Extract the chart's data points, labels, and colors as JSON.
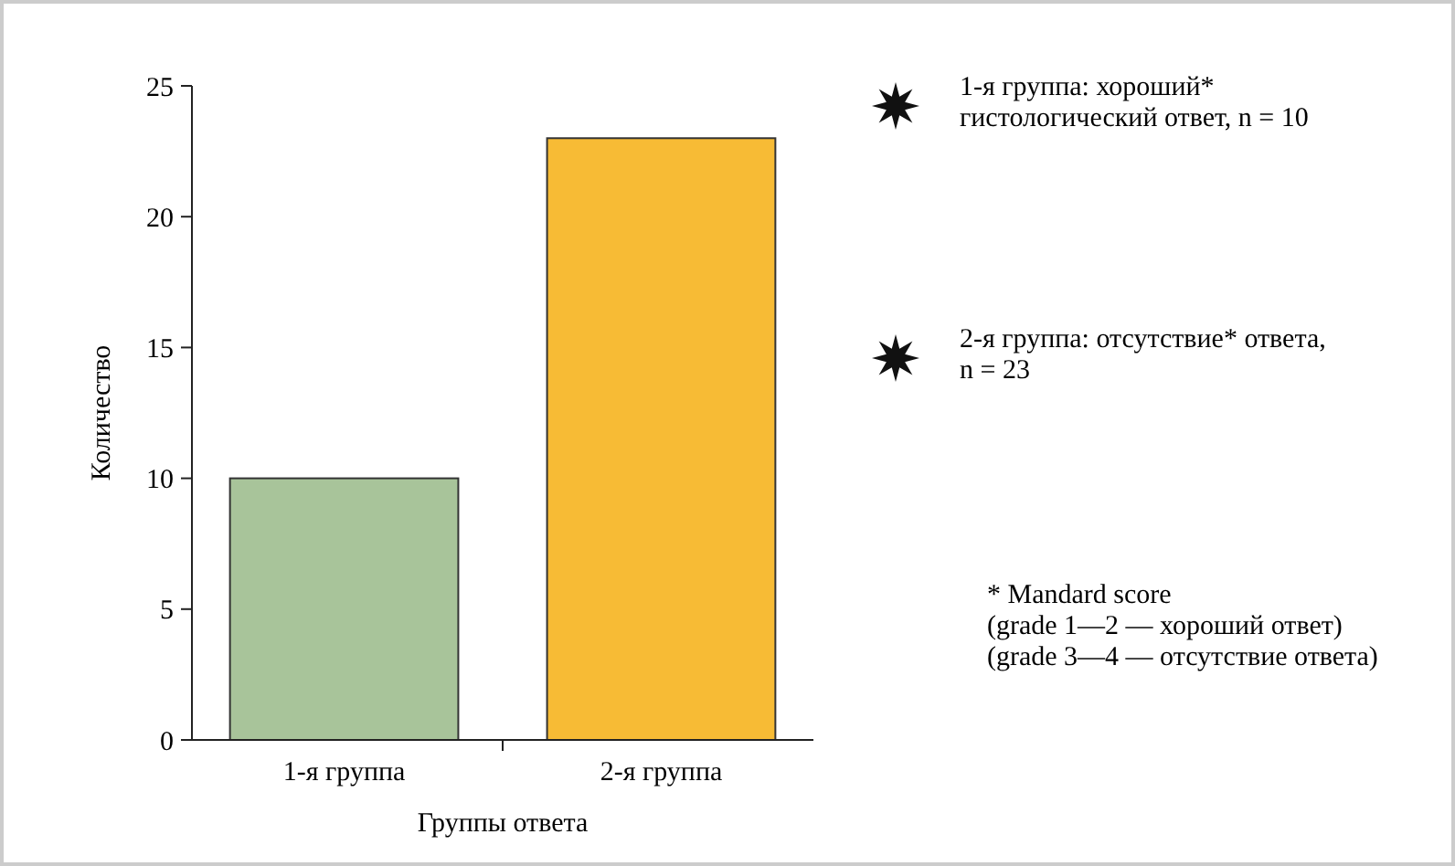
{
  "chart_data": {
    "type": "bar",
    "categories": [
      "1-я группа",
      "2-я группа"
    ],
    "values": [
      10,
      23
    ],
    "colors": [
      "#a8c49a",
      "#f7bb35"
    ],
    "xlabel": "Группы ответа",
    "ylabel": "Количество",
    "ylim": [
      0,
      25
    ],
    "yticks": [
      0,
      5,
      10,
      15,
      20,
      25
    ],
    "annotations": [
      "1-я группа: хороший*\nгистологический ответ, n = 10",
      "2-я группа: отсутствие* ответа,\nn = 23",
      "* Mandard score\n(grade 1—2 — хороший ответ)\n(grade 3—4 — отсутствие ответа)"
    ]
  }
}
